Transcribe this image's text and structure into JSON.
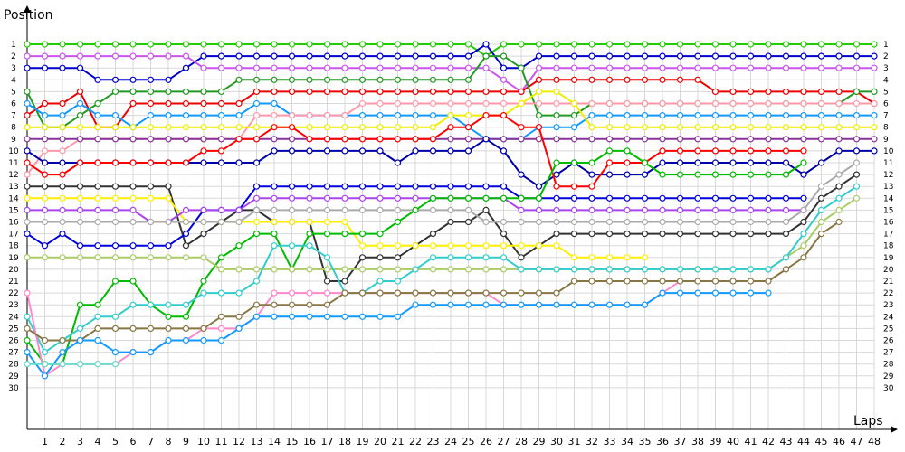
{
  "chart_data": {
    "type": "line",
    "title": "",
    "ylabel": "Position",
    "xlabel": "Laps",
    "x": [
      1,
      2,
      3,
      4,
      5,
      6,
      7,
      8,
      9,
      10,
      11,
      12,
      13,
      14,
      15,
      16,
      17,
      18,
      19,
      20,
      21,
      22,
      23,
      24,
      25,
      26,
      27,
      28,
      29,
      30,
      31,
      32,
      33,
      34,
      35,
      36,
      37,
      38,
      39,
      40,
      41,
      42,
      43,
      44,
      45,
      46,
      47,
      48
    ],
    "ylim": [
      1,
      30
    ],
    "xlim": [
      0,
      48
    ],
    "y_ticks": [
      1,
      2,
      3,
      4,
      5,
      6,
      7,
      8,
      9,
      10,
      11,
      12,
      13,
      14,
      15,
      16,
      17,
      18,
      19,
      20,
      21,
      22,
      23,
      24,
      25,
      26,
      27,
      28,
      29,
      30
    ],
    "y_ticks_right": [
      1,
      2,
      3,
      4,
      5,
      6,
      7,
      8,
      9,
      10,
      11,
      12,
      13,
      14,
      15,
      16,
      17,
      18,
      19,
      20,
      21,
      22,
      23,
      24,
      25,
      26,
      27,
      28,
      29,
      30
    ],
    "grid": true,
    "y_inverted": true,
    "series": [
      {
        "color": "#22cc00",
        "start": 1,
        "values": [
          1,
          1,
          1,
          1,
          1,
          1,
          1,
          1,
          1,
          1,
          1,
          1,
          1,
          1,
          1,
          1,
          1,
          1,
          1,
          1,
          1,
          1,
          1,
          1,
          1,
          2,
          1,
          1,
          1,
          1,
          1,
          1,
          1,
          1,
          1,
          1,
          1,
          1,
          1,
          1,
          1,
          1,
          1,
          1,
          1,
          1,
          1,
          1
        ]
      },
      {
        "color": "#0000cc",
        "start": 3,
        "values": [
          3,
          3,
          3,
          4,
          4,
          4,
          4,
          4,
          3,
          2,
          2,
          2,
          2,
          2,
          2,
          2,
          2,
          2,
          2,
          2,
          2,
          2,
          2,
          2,
          2,
          1,
          3,
          3,
          2,
          2,
          2,
          2,
          2,
          2,
          2,
          2,
          2,
          2,
          2,
          2,
          2,
          2,
          2,
          2,
          2,
          2,
          2,
          2
        ]
      },
      {
        "color": "#cc55ee",
        "start": 2,
        "values": [
          2,
          2,
          2,
          2,
          2,
          2,
          2,
          2,
          2,
          3,
          3,
          3,
          3,
          3,
          3,
          3,
          3,
          3,
          3,
          3,
          3,
          3,
          3,
          3,
          3,
          3,
          4,
          5,
          3,
          3,
          3,
          3,
          3,
          3,
          3,
          3,
          3,
          3,
          3,
          3,
          3,
          3,
          3,
          3,
          3,
          3,
          3,
          3
        ]
      },
      {
        "color": "#ee0000",
        "start": 7,
        "values": [
          6,
          6,
          5,
          8,
          8,
          6,
          6,
          6,
          6,
          6,
          6,
          6,
          5,
          5,
          5,
          5,
          5,
          5,
          5,
          5,
          5,
          5,
          5,
          5,
          5,
          5,
          5,
          5,
          4,
          4,
          4,
          4,
          4,
          4,
          4,
          4,
          4,
          4,
          5,
          5,
          5,
          5,
          5,
          5,
          5,
          5,
          5,
          6
        ]
      },
      {
        "color": "#229922",
        "start": 5,
        "values": [
          8,
          8,
          7,
          6,
          5,
          5,
          5,
          5,
          5,
          5,
          5,
          4,
          4,
          4,
          4,
          4,
          4,
          4,
          4,
          4,
          4,
          4,
          4,
          4,
          4,
          2,
          2,
          3,
          7,
          7,
          7,
          6,
          6,
          6,
          6,
          6,
          6,
          6,
          6,
          6,
          6,
          6,
          6,
          6,
          6,
          6,
          5,
          5
        ]
      },
      {
        "color": "#1199ff",
        "start": 6,
        "values": [
          7,
          7,
          6,
          7,
          7,
          8,
          7,
          7,
          7,
          7,
          7,
          7,
          6,
          6,
          7,
          7,
          7,
          7,
          7,
          7,
          7,
          7,
          7,
          7,
          8,
          9,
          9,
          9,
          8,
          8,
          8,
          7,
          7,
          7,
          7,
          7,
          7,
          7,
          7,
          7,
          7,
          7,
          7,
          7,
          7,
          7,
          7,
          7
        ]
      },
      {
        "color": "#ff99aa",
        "start": 12,
        "values": [
          10,
          10,
          9,
          9,
          9,
          9,
          9,
          9,
          9,
          9,
          9,
          9,
          7,
          7,
          7,
          7,
          7,
          7,
          6,
          6,
          6,
          6,
          6,
          6,
          6,
          6,
          6,
          6,
          6,
          6,
          6,
          6,
          6,
          6,
          6,
          6,
          6,
          6,
          6,
          6,
          6,
          6,
          6,
          6,
          6,
          6,
          6,
          6
        ]
      },
      {
        "color": "#eeee00",
        "start": 8,
        "values": [
          8,
          8,
          8,
          8,
          8,
          8,
          8,
          8,
          8,
          8,
          8,
          8,
          8,
          8,
          8,
          8,
          8,
          8,
          8,
          8,
          8,
          8,
          8,
          7,
          7,
          7,
          7,
          6,
          5,
          5,
          6,
          8,
          8,
          8,
          8,
          8,
          8,
          8,
          8,
          8,
          8,
          8,
          8,
          8,
          8,
          8,
          8,
          8
        ]
      },
      {
        "color": "#883399",
        "start": 9,
        "values": [
          9,
          9,
          9,
          9,
          9,
          9,
          9,
          9,
          9,
          9,
          9,
          9,
          9,
          9,
          9,
          9,
          9,
          9,
          9,
          9,
          9,
          9,
          9,
          9,
          9,
          9,
          9,
          9,
          9,
          9,
          9,
          9,
          9,
          9,
          9,
          9,
          9,
          9,
          9,
          9,
          9,
          9,
          9,
          9,
          9,
          9,
          9,
          9
        ]
      },
      {
        "color": "#0000aa",
        "start": 10,
        "values": [
          11,
          11,
          11,
          11,
          11,
          11,
          11,
          11,
          11,
          11,
          11,
          11,
          11,
          10,
          10,
          10,
          10,
          10,
          10,
          10,
          11,
          10,
          10,
          10,
          10,
          9,
          10,
          12,
          13,
          12,
          11,
          12,
          12,
          12,
          12,
          11,
          11,
          11,
          11,
          11,
          11,
          11,
          11,
          12,
          11,
          10,
          10,
          10
        ]
      },
      {
        "color": "#ff0000",
        "start": 11,
        "values": [
          12,
          12,
          11,
          11,
          11,
          11,
          11,
          11,
          11,
          10,
          10,
          9,
          9,
          8,
          8,
          9,
          9,
          9,
          9,
          9,
          9,
          9,
          9,
          8,
          8,
          7,
          7,
          8,
          8,
          13,
          13,
          13,
          11,
          11,
          11,
          10,
          10,
          10,
          10,
          10,
          10,
          10,
          10,
          10,
          null,
          null,
          null,
          null
        ]
      },
      {
        "color": "#333333",
        "start": 13,
        "values": [
          13,
          13,
          13,
          13,
          13,
          13,
          13,
          13,
          18,
          17,
          16,
          15,
          15,
          16,
          16,
          16,
          21,
          21,
          19,
          19,
          19,
          18,
          17,
          16,
          16,
          15,
          17,
          19,
          18,
          17,
          17,
          17,
          17,
          17,
          17,
          17,
          17,
          17,
          17,
          17,
          17,
          17,
          17,
          16,
          14,
          13,
          12,
          null
        ]
      },
      {
        "color": "#ffee00",
        "start": 14,
        "values": [
          14,
          14,
          14,
          14,
          14,
          14,
          14,
          14,
          16,
          16,
          16,
          16,
          16,
          16,
          16,
          16,
          16,
          16,
          18,
          18,
          18,
          18,
          18,
          18,
          18,
          18,
          18,
          18,
          18,
          18,
          19,
          19,
          19,
          19,
          19,
          null,
          null,
          null,
          null,
          null,
          null,
          null,
          null,
          null,
          null,
          null,
          null,
          null
        ]
      },
      {
        "color": "#0000dd",
        "start": 17,
        "values": [
          18,
          17,
          18,
          18,
          18,
          18,
          18,
          18,
          17,
          15,
          15,
          15,
          13,
          13,
          13,
          13,
          13,
          13,
          13,
          13,
          13,
          13,
          13,
          13,
          13,
          13,
          13,
          14,
          14,
          14,
          14,
          14,
          14,
          14,
          14,
          14,
          14,
          14,
          14,
          14,
          14,
          14,
          14,
          14,
          null,
          null,
          null,
          null
        ]
      },
      {
        "color": "#aa44ee",
        "start": 15,
        "values": [
          15,
          15,
          15,
          15,
          15,
          15,
          16,
          16,
          15,
          15,
          15,
          15,
          14,
          14,
          14,
          14,
          14,
          14,
          14,
          14,
          14,
          14,
          14,
          14,
          14,
          14,
          14,
          15,
          15,
          15,
          15,
          15,
          15,
          15,
          15,
          15,
          15,
          15,
          15,
          15,
          15,
          15,
          15,
          15,
          null,
          null,
          null,
          null
        ]
      },
      {
        "color": "#aaaaaa",
        "start": 16,
        "values": [
          16,
          16,
          16,
          16,
          16,
          16,
          16,
          16,
          16,
          16,
          16,
          16,
          15,
          15,
          15,
          15,
          15,
          15,
          15,
          15,
          15,
          15,
          15,
          15,
          15,
          16,
          16,
          16,
          16,
          16,
          16,
          16,
          16,
          16,
          16,
          16,
          16,
          16,
          16,
          16,
          16,
          16,
          16,
          15,
          13,
          12,
          11,
          null
        ]
      },
      {
        "color": "#00bb00",
        "start": 26,
        "values": [
          28,
          28,
          23,
          23,
          21,
          21,
          23,
          24,
          24,
          21,
          19,
          18,
          17,
          17,
          20,
          17,
          17,
          17,
          17,
          17,
          16,
          15,
          14,
          14,
          14,
          14,
          14,
          14,
          14,
          11,
          11,
          11,
          10,
          10,
          11,
          12,
          12,
          12,
          12,
          12,
          12,
          12,
          12,
          11,
          null,
          null,
          null,
          null
        ]
      },
      {
        "color": "#aacc66",
        "start": 19,
        "values": [
          19,
          19,
          19,
          19,
          19,
          19,
          19,
          19,
          19,
          19,
          20,
          20,
          20,
          20,
          20,
          20,
          20,
          20,
          20,
          20,
          20,
          20,
          20,
          20,
          20,
          20,
          20,
          20,
          20,
          20,
          20,
          20,
          20,
          20,
          20,
          20,
          20,
          20,
          20,
          20,
          20,
          20,
          19,
          18,
          16,
          15,
          14,
          null
        ]
      },
      {
        "color": "#33cccc",
        "start": 24,
        "values": [
          27,
          26,
          25,
          24,
          24,
          23,
          23,
          23,
          23,
          22,
          22,
          22,
          21,
          18,
          18,
          18,
          19,
          22,
          22,
          21,
          21,
          20,
          19,
          19,
          19,
          19,
          19,
          20,
          20,
          20,
          20,
          20,
          20,
          20,
          20,
          20,
          20,
          20,
          20,
          20,
          20,
          20,
          19,
          17,
          15,
          14,
          13,
          null
        ]
      },
      {
        "color": "#ff88cc",
        "start": 22,
        "values": [
          29,
          28,
          28,
          28,
          28,
          27,
          27,
          26,
          26,
          25,
          25,
          25,
          24,
          22,
          22,
          22,
          22,
          22,
          22,
          22,
          22,
          22,
          22,
          22,
          22,
          22,
          23,
          23,
          23,
          23,
          23,
          23,
          23,
          23,
          23,
          22,
          21,
          21,
          21,
          21,
          21,
          21,
          20,
          null,
          null,
          null,
          null,
          null
        ]
      },
      {
        "color": "#887744",
        "start": 25,
        "values": [
          26,
          26,
          26,
          25,
          25,
          25,
          25,
          25,
          25,
          25,
          24,
          24,
          23,
          23,
          23,
          23,
          23,
          22,
          22,
          22,
          22,
          22,
          22,
          22,
          22,
          22,
          22,
          22,
          22,
          22,
          21,
          21,
          21,
          21,
          21,
          21,
          21,
          21,
          21,
          21,
          21,
          21,
          20,
          19,
          17,
          16,
          null,
          null
        ]
      },
      {
        "color": "#1199ff",
        "start": 27,
        "values": [
          29,
          27,
          26,
          26,
          27,
          27,
          27,
          26,
          26,
          26,
          26,
          25,
          24,
          24,
          24,
          24,
          24,
          24,
          24,
          24,
          24,
          23,
          23,
          23,
          23,
          23,
          23,
          23,
          23,
          23,
          23,
          23,
          23,
          23,
          23,
          22,
          22,
          22,
          22,
          22,
          22,
          22,
          null,
          null,
          null,
          null,
          null,
          null
        ]
      },
      {
        "color": "#66ddcc",
        "start": 28,
        "values": [
          28,
          28,
          28,
          28,
          28,
          null,
          null,
          null,
          null,
          null,
          null,
          null,
          null,
          null,
          null,
          null,
          null,
          null,
          null,
          null,
          null,
          null,
          null,
          null,
          null,
          null,
          null,
          null,
          null,
          null,
          null,
          null,
          null,
          null,
          null,
          null,
          null,
          null,
          null,
          null,
          null,
          null,
          null,
          null,
          null,
          null,
          null,
          null
        ]
      }
    ]
  }
}
